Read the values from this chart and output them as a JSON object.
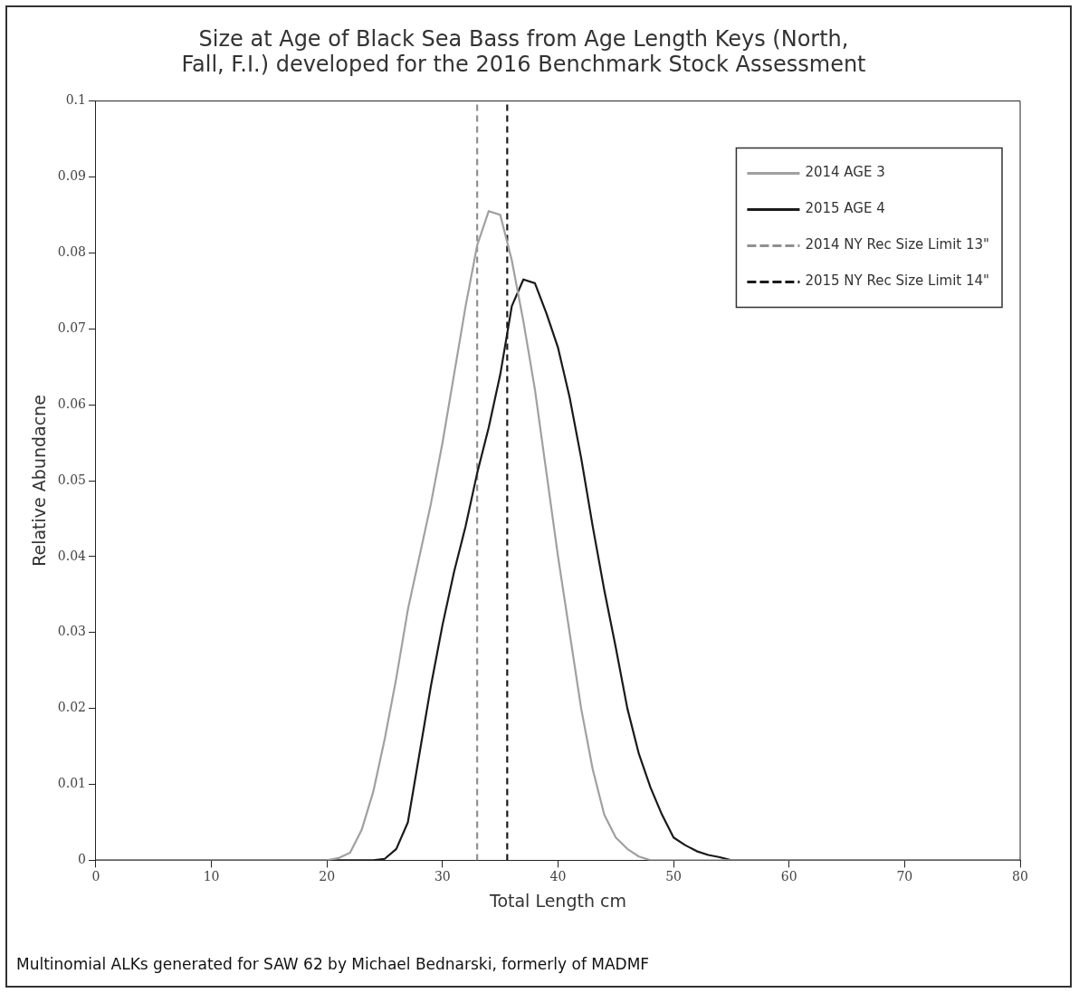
{
  "chart_data": {
    "type": "line",
    "title": "Size at Age of Black Sea Bass from Age Length Keys (North, Fall, F.I.) developed for the 2016 Benchmark Stock Assessment",
    "xlabel": "Total Length cm",
    "ylabel": "Relative Abundacne",
    "series": [
      {
        "name": "2014 AGE 3",
        "color": "#a0a0a0",
        "x": [
          0,
          20,
          21,
          22,
          23,
          24,
          25,
          26,
          27,
          28,
          29,
          30,
          31,
          32,
          33,
          34,
          35,
          36,
          37,
          38,
          39,
          40,
          41,
          42,
          43,
          44,
          45,
          46,
          47,
          48,
          80
        ],
        "values": [
          0,
          0,
          0.0003,
          0.001,
          0.004,
          0.009,
          0.016,
          0.024,
          0.033,
          0.04,
          0.047,
          0.055,
          0.064,
          0.073,
          0.081,
          0.0855,
          0.085,
          0.079,
          0.071,
          0.062,
          0.051,
          0.04,
          0.03,
          0.02,
          0.012,
          0.006,
          0.003,
          0.0015,
          0.0005,
          0,
          0
        ]
      },
      {
        "name": "2015 AGE 4",
        "color": "#1a1a1a",
        "x": [
          0,
          24,
          25,
          26,
          27,
          28,
          29,
          30,
          31,
          32,
          33,
          34,
          35,
          36,
          37,
          38,
          39,
          40,
          41,
          42,
          43,
          44,
          45,
          46,
          47,
          48,
          49,
          50,
          51,
          52,
          53,
          54,
          55,
          80
        ],
        "values": [
          0,
          0,
          0.0002,
          0.0015,
          0.005,
          0.014,
          0.023,
          0.031,
          0.038,
          0.044,
          0.051,
          0.057,
          0.064,
          0.073,
          0.0765,
          0.076,
          0.072,
          0.0675,
          0.061,
          0.053,
          0.044,
          0.0356,
          0.028,
          0.02,
          0.014,
          0.0096,
          0.006,
          0.003,
          0.002,
          0.0012,
          0.0007,
          0.0004,
          0,
          0
        ]
      },
      {
        "name": "2014 NY Rec Size Limit 13\"",
        "color": "#909090",
        "line_style": "dashed",
        "x": [
          33,
          33
        ],
        "values": [
          0,
          0.1
        ]
      },
      {
        "name": "2015 NY Rec Size Limit 14\"",
        "color": "#1a1a1a",
        "line_style": "dashed",
        "x": [
          35.6,
          35.6
        ],
        "values": [
          0,
          0.1
        ]
      }
    ],
    "xlim": [
      0,
      80
    ],
    "xticks": [
      0,
      10,
      20,
      30,
      40,
      50,
      60,
      70,
      80
    ],
    "ylim": [
      0,
      0.1
    ],
    "yticks": [
      0,
      0.01,
      0.02,
      0.03,
      0.04,
      0.05,
      0.06,
      0.07,
      0.08,
      0.09,
      0.1
    ],
    "grid": false,
    "legend": "top right",
    "marker": "none",
    "line_style": "solid",
    "annotations": [
      "Multinomial ALKs generated for SAW 62 by Michael Bednarski, formerly of MADMF"
    ]
  }
}
